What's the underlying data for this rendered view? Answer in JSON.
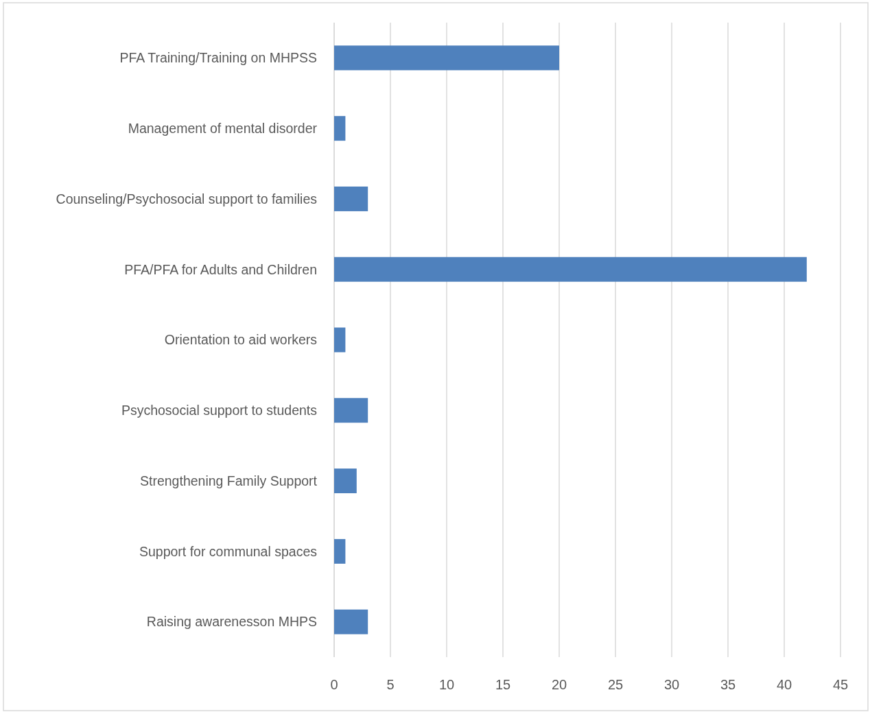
{
  "chart_data": {
    "type": "bar",
    "orientation": "horizontal",
    "categories": [
      "PFA Training/Training on MHPSS",
      "Management of mental disorder",
      "Counseling/Psychosocial support to families",
      "PFA/PFA for Adults and Children",
      "Orientation to aid workers",
      "Psychosocial support to students",
      "Strengthening Family Support",
      "Support for communal spaces",
      "Raising awarenesson MHPS"
    ],
    "values": [
      20,
      1,
      3,
      42,
      1,
      3,
      2,
      1,
      3
    ],
    "color": "#4f81bd",
    "xlim": [
      0,
      45
    ],
    "xticks": [
      0,
      5,
      10,
      15,
      20,
      25,
      30,
      35,
      40,
      45
    ],
    "grid": "x"
  }
}
